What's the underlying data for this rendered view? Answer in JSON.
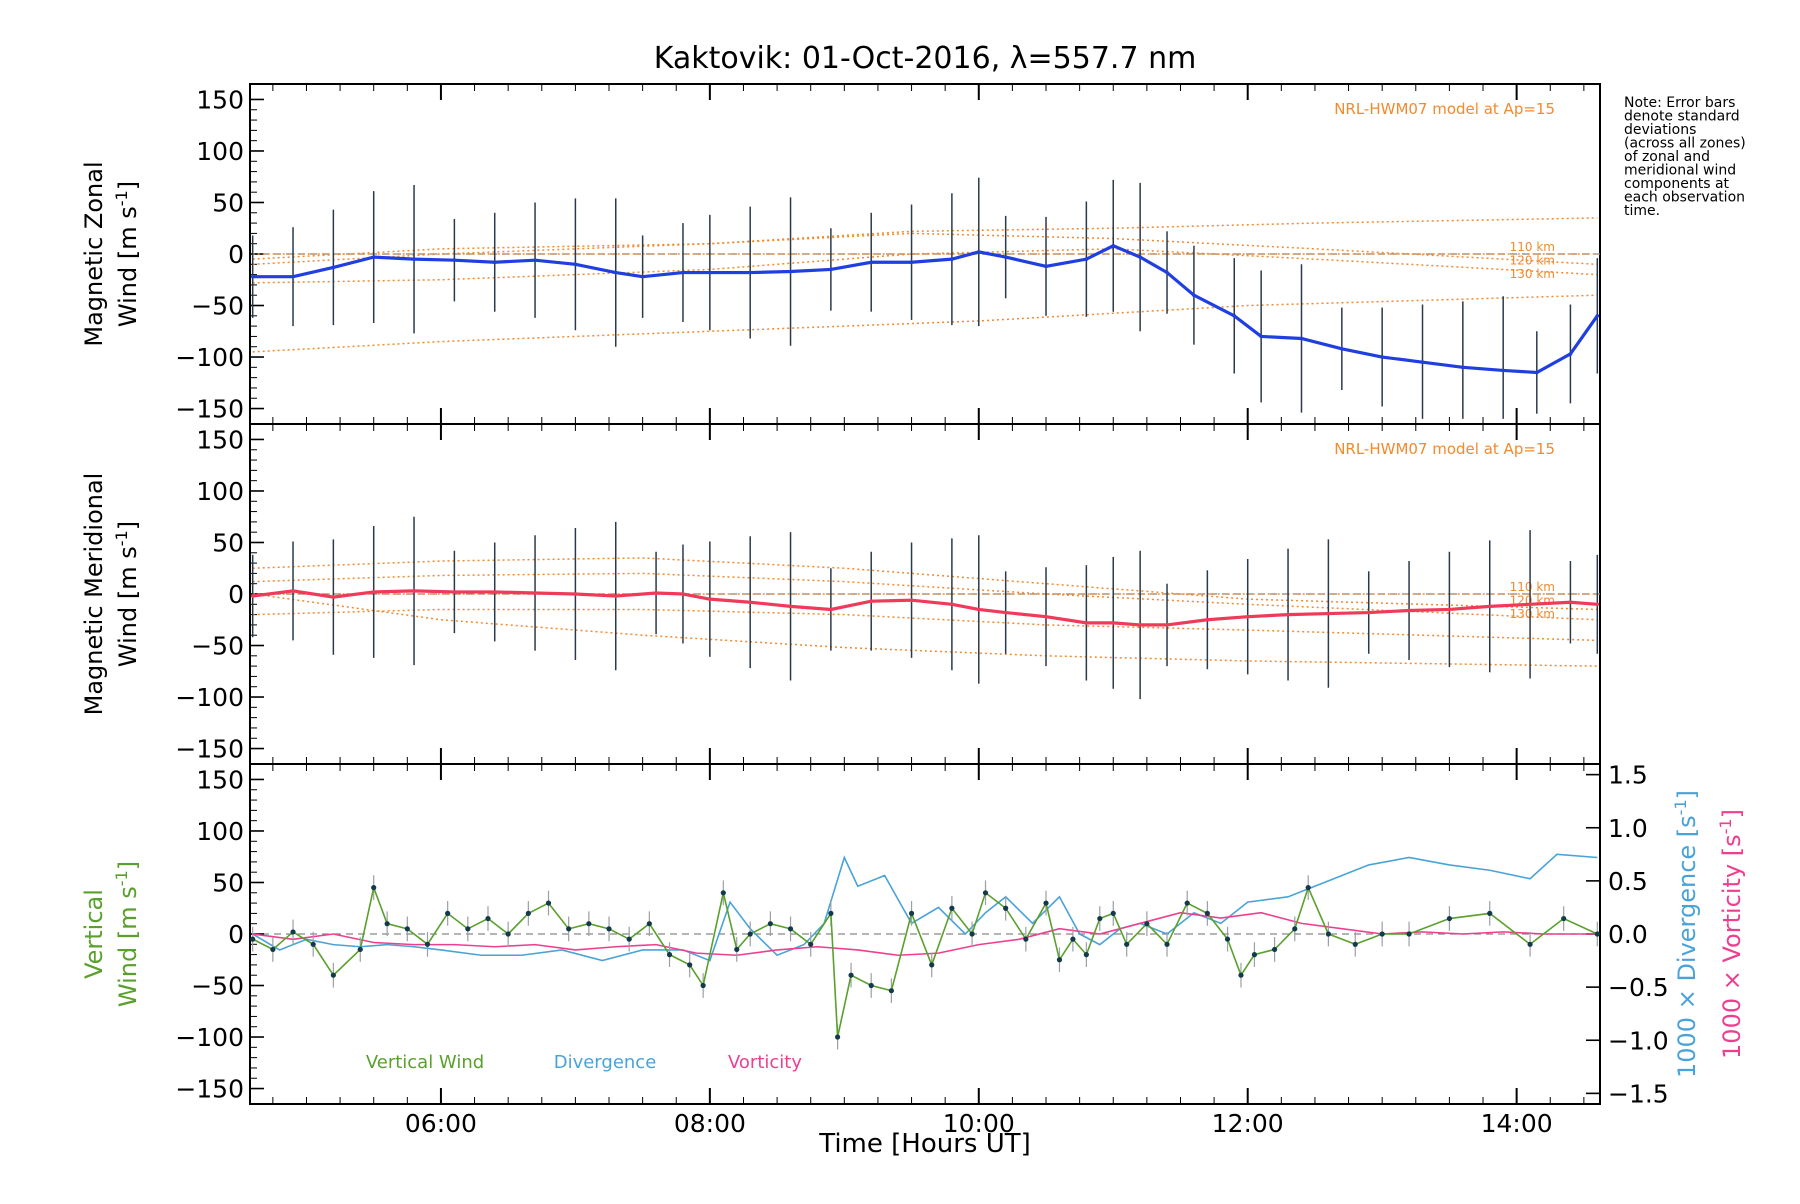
{
  "chart_data": {
    "type": "line",
    "title": "Kaktovik: 01-Oct-2016, λ=557.7 nm",
    "xlabel": "Time [Hours UT]",
    "x_ticks": [
      "06:00",
      "08:00",
      "10:00",
      "12:00",
      "14:00"
    ],
    "x_tick_values": [
      6,
      8,
      10,
      12,
      14
    ],
    "xlim": [
      4.58,
      14.62
    ],
    "note": [
      "Note: Error bars",
      "denote standard",
      "deviations",
      "(across all zones)",
      "of zonal and",
      "meridional wind",
      "components at",
      "each observation",
      "time."
    ],
    "colors": {
      "zonal": "#1f3fe0",
      "meridional": "#f03a5a",
      "model": "#f28a2e",
      "vertical": "#5aa02c",
      "divergence": "#4aa3d8",
      "vorticity": "#ee3f8f",
      "scatter": "#a8a3d8",
      "errorbar": "#2b3a4a"
    },
    "panels": [
      {
        "name": "zonal",
        "ylabel_line1": "Magnetic Zonal",
        "ylabel_line2": "Wind [m s",
        "ylabel_sup": "-1",
        "ylabel_close": "]",
        "ylim": [
          -165,
          165
        ],
        "yticks": [
          150,
          100,
          50,
          0,
          -50,
          -100,
          -150
        ],
        "model_label": "NRL-HWM07 model at Ap=15",
        "altitude_labels": [
          "110 km",
          "120 km",
          "130 km"
        ],
        "model_lines": [
          {
            "x": [
              4.6,
              6,
              8,
              10,
              11.5,
              13,
              14.6
            ],
            "y": [
              0,
              0,
              0,
              0,
              0,
              0,
              0
            ]
          },
          {
            "x": [
              4.6,
              6,
              8,
              9.5,
              11,
              12.5,
              14.6
            ],
            "y": [
              -5,
              5,
              10,
              20,
              15,
              5,
              -10
            ]
          },
          {
            "x": [
              4.6,
              6,
              8,
              9.5,
              11,
              12.5,
              14.6
            ],
            "y": [
              -28,
              -25,
              -15,
              0,
              5,
              -5,
              -20
            ]
          },
          {
            "x": [
              4.6,
              6,
              8,
              10,
              12,
              14.6
            ],
            "y": [
              -95,
              -85,
              -75,
              -65,
              -50,
              -40
            ]
          },
          {
            "x": [
              4.6,
              6,
              8,
              9.5,
              11,
              12.5,
              14.6
            ],
            "y": [
              -10,
              0,
              10,
              22,
              25,
              30,
              35
            ]
          }
        ],
        "series": {
          "name": "Magnetic Zonal Wind",
          "x": [
            4.6,
            4.9,
            5.2,
            5.5,
            5.8,
            6.1,
            6.4,
            6.7,
            7.0,
            7.3,
            7.5,
            7.8,
            8.0,
            8.3,
            8.6,
            8.9,
            9.2,
            9.5,
            9.8,
            10.0,
            10.2,
            10.5,
            10.8,
            11.0,
            11.2,
            11.4,
            11.6,
            11.9,
            12.1,
            12.4,
            12.7,
            13.0,
            13.3,
            13.6,
            13.9,
            14.15,
            14.4,
            14.6
          ],
          "y": [
            -22,
            -22,
            -13,
            -3,
            -5,
            -6,
            -8,
            -6,
            -10,
            -18,
            -22,
            -18,
            -18,
            -18,
            -17,
            -15,
            -8,
            -8,
            -5,
            2,
            -3,
            -12,
            -5,
            8,
            -3,
            -18,
            -40,
            -60,
            -80,
            -82,
            -92,
            -100,
            -105,
            -110,
            -113,
            -115,
            -97,
            -60
          ]
        }
      },
      {
        "name": "meridional",
        "ylabel_line1": "Magnetic Meridional",
        "ylabel_line2": "Wind [m s",
        "ylabel_sup": "-1",
        "ylabel_close": "]",
        "ylim": [
          -165,
          165
        ],
        "yticks": [
          150,
          100,
          50,
          0,
          -50,
          -100,
          -150
        ],
        "model_label": "NRL-HWM07 model at Ap=15",
        "altitude_labels": [
          "110 km",
          "120 km",
          "130 km"
        ],
        "model_lines": [
          {
            "x": [
              4.6,
              6,
              8,
              10,
              11.5,
              13,
              14.6
            ],
            "y": [
              0,
              0,
              0,
              0,
              0,
              0,
              0
            ]
          },
          {
            "x": [
              4.6,
              6,
              7.5,
              9,
              10.5,
              12,
              14.6
            ],
            "y": [
              25,
              32,
              35,
              25,
              10,
              -5,
              -15
            ]
          },
          {
            "x": [
              4.6,
              6,
              7.5,
              9,
              10.5,
              12,
              14.6
            ],
            "y": [
              12,
              18,
              20,
              12,
              0,
              -10,
              -25
            ]
          },
          {
            "x": [
              4.6,
              6,
              7.5,
              9,
              10.5,
              12,
              14.6
            ],
            "y": [
              -20,
              -15,
              -15,
              -20,
              -30,
              -35,
              -45
            ]
          },
          {
            "x": [
              4.6,
              6,
              7.5,
              9,
              10.5,
              12,
              14.6
            ],
            "y": [
              0,
              -25,
              -40,
              -52,
              -60,
              -65,
              -70
            ]
          }
        ],
        "series": {
          "name": "Magnetic Meridional Wind",
          "x": [
            4.6,
            4.9,
            5.2,
            5.5,
            5.8,
            6.1,
            6.4,
            6.7,
            7.0,
            7.3,
            7.6,
            7.8,
            8.0,
            8.3,
            8.6,
            8.9,
            9.2,
            9.5,
            9.8,
            10.0,
            10.2,
            10.5,
            10.8,
            11.0,
            11.2,
            11.4,
            11.7,
            12.0,
            12.3,
            12.6,
            12.9,
            13.2,
            13.5,
            13.8,
            14.1,
            14.4,
            14.6
          ],
          "y": [
            -2,
            3,
            -3,
            2,
            3,
            2,
            2,
            1,
            0,
            -2,
            1,
            0,
            -5,
            -8,
            -12,
            -15,
            -7,
            -6,
            -10,
            -15,
            -18,
            -22,
            -28,
            -28,
            -30,
            -30,
            -25,
            -22,
            -20,
            -19,
            -18,
            -16,
            -15,
            -12,
            -10,
            -8,
            -10
          ]
        }
      },
      {
        "name": "vertical",
        "ylabel_line1": "Vertical",
        "ylabel_line2": "Wind [m s",
        "ylabel_sup": "-1",
        "ylabel_close": "]",
        "ylim": [
          -165,
          165
        ],
        "yticks": [
          150,
          100,
          50,
          0,
          -50,
          -100,
          -150
        ],
        "right_ylim": [
          -1.6,
          1.6
        ],
        "right_yticks": [
          "1.5",
          "1.0",
          "0.5",
          "0.0",
          "−0.5",
          "−1.0",
          "−1.5"
        ],
        "right_ytick_values": [
          1.5,
          1.0,
          0.5,
          0.0,
          -0.5,
          -1.0,
          -1.5
        ],
        "right_label_div": "1000 × Divergence [s",
        "right_label_vor": "1000 × Vorticity [s",
        "right_label_sup": "-1",
        "right_label_close": "]",
        "legend": [
          "Vertical Wind",
          "Divergence",
          "Vorticity"
        ],
        "series": [
          {
            "name": "Vertical Wind",
            "x": [
              4.6,
              4.75,
              4.9,
              5.05,
              5.2,
              5.4,
              5.5,
              5.6,
              5.75,
              5.9,
              6.05,
              6.2,
              6.35,
              6.5,
              6.65,
              6.8,
              6.95,
              7.1,
              7.25,
              7.4,
              7.55,
              7.7,
              7.85,
              7.95,
              8.1,
              8.2,
              8.3,
              8.45,
              8.6,
              8.75,
              8.9,
              8.95,
              9.05,
              9.2,
              9.35,
              9.5,
              9.65,
              9.8,
              9.95,
              10.05,
              10.2,
              10.35,
              10.5,
              10.6,
              10.7,
              10.8,
              10.9,
              11.0,
              11.1,
              11.25,
              11.4,
              11.55,
              11.7,
              11.85,
              11.95,
              12.05,
              12.2,
              12.35,
              12.45,
              12.6,
              12.8,
              13.0,
              13.2,
              13.5,
              13.8,
              14.1,
              14.35,
              14.6
            ],
            "y": [
              -5,
              -15,
              2,
              -10,
              -40,
              -15,
              45,
              10,
              5,
              -10,
              20,
              5,
              15,
              0,
              20,
              30,
              5,
              10,
              5,
              -5,
              10,
              -20,
              -30,
              -50,
              40,
              -15,
              0,
              10,
              5,
              -10,
              20,
              -100,
              -40,
              -50,
              -55,
              20,
              -30,
              25,
              0,
              40,
              25,
              -5,
              30,
              -25,
              -5,
              -20,
              15,
              20,
              -10,
              10,
              -10,
              30,
              20,
              -5,
              -40,
              -20,
              -15,
              5,
              45,
              0,
              -10,
              0,
              0,
              15,
              20,
              -10,
              15,
              0
            ]
          },
          {
            "name": "Divergence",
            "axis": "right",
            "x": [
              4.6,
              4.8,
              5.0,
              5.2,
              5.4,
              5.6,
              5.8,
              6.0,
              6.3,
              6.6,
              6.9,
              7.2,
              7.5,
              7.8,
              8.0,
              8.15,
              8.3,
              8.5,
              8.7,
              8.85,
              9.0,
              9.1,
              9.3,
              9.5,
              9.7,
              9.9,
              10.05,
              10.2,
              10.4,
              10.6,
              10.75,
              10.9,
              11.05,
              11.2,
              11.4,
              11.6,
              11.8,
              12.0,
              12.3,
              12.6,
              12.9,
              13.2,
              13.5,
              13.8,
              14.1,
              14.3,
              14.6
            ],
            "y": [
              0.0,
              -0.15,
              -0.05,
              -0.1,
              -0.12,
              -0.1,
              -0.12,
              -0.15,
              -0.2,
              -0.2,
              -0.15,
              -0.25,
              -0.15,
              -0.15,
              -0.25,
              0.3,
              0.05,
              -0.2,
              -0.1,
              0.1,
              0.72,
              0.45,
              0.55,
              0.1,
              0.25,
              0.0,
              0.2,
              0.35,
              0.1,
              0.35,
              0.0,
              -0.1,
              0.05,
              0.1,
              0.0,
              0.2,
              0.1,
              0.3,
              0.35,
              0.5,
              0.65,
              0.72,
              0.65,
              0.6,
              0.52,
              0.75,
              0.72
            ]
          },
          {
            "name": "Vorticity",
            "axis": "right",
            "x": [
              4.6,
              4.9,
              5.2,
              5.5,
              5.8,
              6.1,
              6.4,
              6.7,
              7.0,
              7.3,
              7.6,
              7.9,
              8.2,
              8.5,
              8.8,
              9.1,
              9.4,
              9.7,
              10.0,
              10.3,
              10.6,
              10.9,
              11.2,
              11.5,
              11.8,
              12.1,
              12.4,
              12.7,
              13.0,
              13.3,
              13.6,
              13.9,
              14.2,
              14.6
            ],
            "y": [
              0.0,
              -0.05,
              0.0,
              -0.08,
              -0.1,
              -0.1,
              -0.12,
              -0.1,
              -0.15,
              -0.12,
              -0.1,
              -0.18,
              -0.2,
              -0.15,
              -0.12,
              -0.15,
              -0.2,
              -0.18,
              -0.1,
              -0.05,
              0.05,
              0.0,
              0.1,
              0.2,
              0.15,
              0.2,
              0.1,
              0.05,
              0.0,
              0.02,
              0.0,
              0.02,
              0.0,
              0.0
            ]
          }
        ]
      }
    ]
  }
}
